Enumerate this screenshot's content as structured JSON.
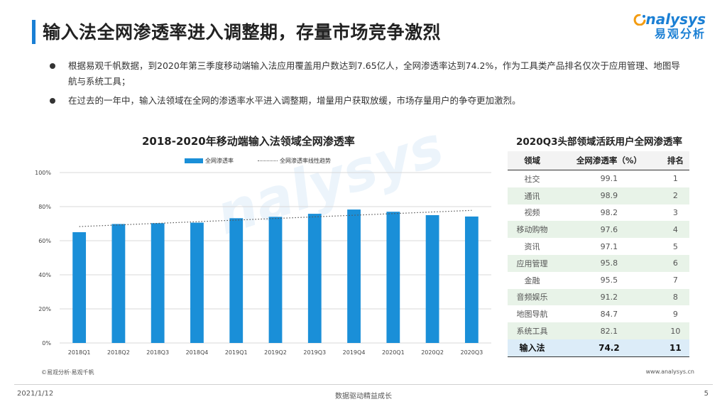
{
  "header": {
    "title": "输入法全网渗透率进入调整期，存量市场竞争激烈",
    "logo_text": "nalysys",
    "logo_cn": "易观分析",
    "accent_color": "#1a7fd4"
  },
  "bullets": [
    "根据易观千帆数据，到2020年第三季度移动端输入法应用覆盖用户数达到7.65亿人，全网渗透率达到74.2%，作为工具类产品排名仅次于应用管理、地图导航与系统工具；",
    "在过去的一年中，输入法领域在全网的渗透率水平进入调整期，增量用户获取放缓，市场存量用户的争夺更加激烈。"
  ],
  "chart_data": {
    "type": "bar",
    "title": "2018-2020年移动端输入法领域全网渗透率",
    "categories": [
      "2018Q1",
      "2018Q2",
      "2018Q3",
      "2018Q4",
      "2019Q1",
      "2019Q2",
      "2019Q3",
      "2019Q4",
      "2020Q1",
      "2020Q2",
      "2020Q3"
    ],
    "series": [
      {
        "name": "全网渗透率",
        "values": [
          65.0,
          69.8,
          70.3,
          70.6,
          73.2,
          74.0,
          75.8,
          78.3,
          77.0,
          75.0,
          74.2
        ],
        "color": "#1a8fd8"
      }
    ],
    "trendline": {
      "name": "全网渗透率线性趋势",
      "start": 68.3,
      "end": 77.8
    },
    "ylim": [
      0,
      100
    ],
    "yticks": [
      "0%",
      "20%",
      "40%",
      "60%",
      "80%",
      "100%"
    ],
    "xlabel": "",
    "ylabel": ""
  },
  "source_left": "©易观分析·易观千帆",
  "table": {
    "title": "2020Q3头部领域活跃用户全网渗透率",
    "headers": [
      "领域",
      "全网渗透率（%）",
      "排名"
    ],
    "rows": [
      [
        "社交",
        "99.1",
        "1"
      ],
      [
        "通讯",
        "98.9",
        "2"
      ],
      [
        "视频",
        "98.2",
        "3"
      ],
      [
        "移动购物",
        "97.6",
        "4"
      ],
      [
        "资讯",
        "97.1",
        "5"
      ],
      [
        "应用管理",
        "95.8",
        "6"
      ],
      [
        "金融",
        "95.5",
        "7"
      ],
      [
        "音频娱乐",
        "91.2",
        "8"
      ],
      [
        "地图导航",
        "84.7",
        "9"
      ],
      [
        "系统工具",
        "82.1",
        "10"
      ],
      [
        "输入法",
        "74.2",
        "11"
      ]
    ]
  },
  "source_right": "www.analysys.cn",
  "footer": {
    "date": "2021/1/12",
    "slogan": "数据驱动精益成长",
    "page": "5"
  }
}
